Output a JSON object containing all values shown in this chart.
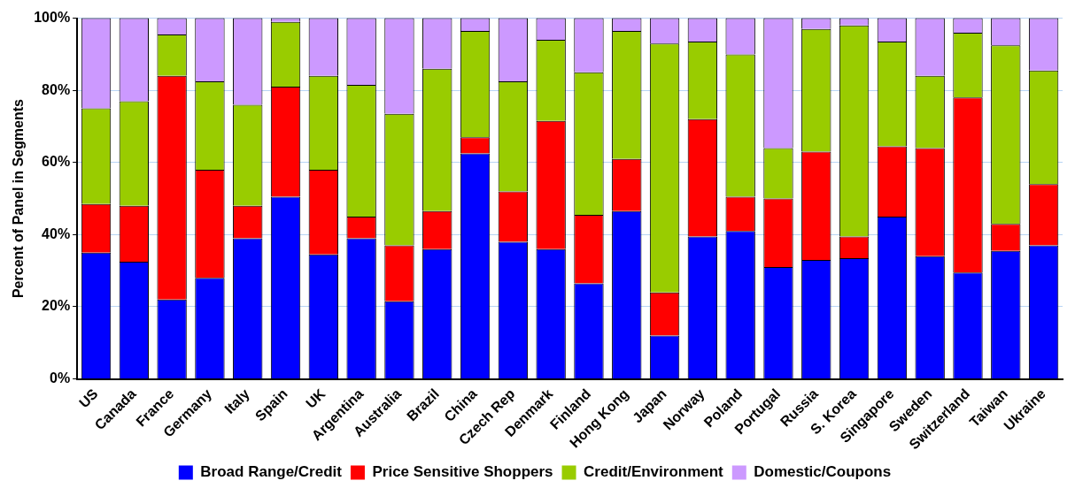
{
  "chart_data": {
    "type": "bar",
    "stacked": true,
    "ylabel": "Percent of Panel in Segments",
    "categories": [
      "US",
      "Canada",
      "France",
      "Germany",
      "Italy",
      "Spain",
      "UK",
      "Argentina",
      "Australia",
      "Brazil",
      "China",
      "Czech Rep",
      "Denmark",
      "Finland",
      "Hong Kong",
      "Japan",
      "Norway",
      "Poland",
      "Portugal",
      "Russia",
      "S. Korea",
      "Singapore",
      "Sweden",
      "Switzerland",
      "Taiwan",
      "Ukraine"
    ],
    "series": [
      {
        "name": "Broad Range/Credit",
        "color": "#0000ff",
        "values": [
          35,
          32.5,
          22,
          28,
          39,
          50.5,
          34.5,
          39,
          21.5,
          36,
          62.5,
          38,
          36,
          26.5,
          46.5,
          12,
          39.5,
          41,
          31,
          33,
          33.5,
          45,
          34,
          29.5,
          35.5,
          37
        ]
      },
      {
        "name": "Price Sensitive Shoppers",
        "color": "#ff0000",
        "values": [
          13.5,
          15.5,
          62,
          30,
          9,
          30.5,
          23.5,
          6,
          15.5,
          10.5,
          4.5,
          14,
          35.5,
          19,
          14.5,
          12,
          32.5,
          9.5,
          19,
          30,
          6,
          19.5,
          30,
          48.5,
          7.5,
          17
        ]
      },
      {
        "name": "Credit/Environment",
        "color": "#99cc00",
        "values": [
          26.5,
          29,
          11.5,
          24.5,
          28,
          18,
          26,
          36.5,
          36.5,
          39.5,
          29.5,
          30.5,
          22.5,
          39.5,
          35.5,
          69,
          21.5,
          39.5,
          14,
          34,
          58.5,
          29,
          20,
          18,
          49.5,
          31.5
        ]
      },
      {
        "name": "Domestic/Coupons",
        "color": "#cc99ff",
        "values": [
          25,
          23,
          4.5,
          17.5,
          24,
          1,
          16,
          18.5,
          26.5,
          14,
          3.5,
          17.5,
          6,
          15,
          3.5,
          7,
          6.5,
          10,
          36,
          3,
          2,
          6.5,
          16,
          4,
          7.5,
          14.5
        ]
      }
    ],
    "ylim": [
      0,
      100
    ],
    "yticks": [
      {
        "value": 0,
        "label": "0%"
      },
      {
        "value": 20,
        "label": "20%"
      },
      {
        "value": 40,
        "label": "40%"
      },
      {
        "value": 60,
        "label": "60%"
      },
      {
        "value": 80,
        "label": "80%"
      },
      {
        "value": 100,
        "label": "100%"
      }
    ],
    "grid": "y",
    "legend": "bottom"
  }
}
